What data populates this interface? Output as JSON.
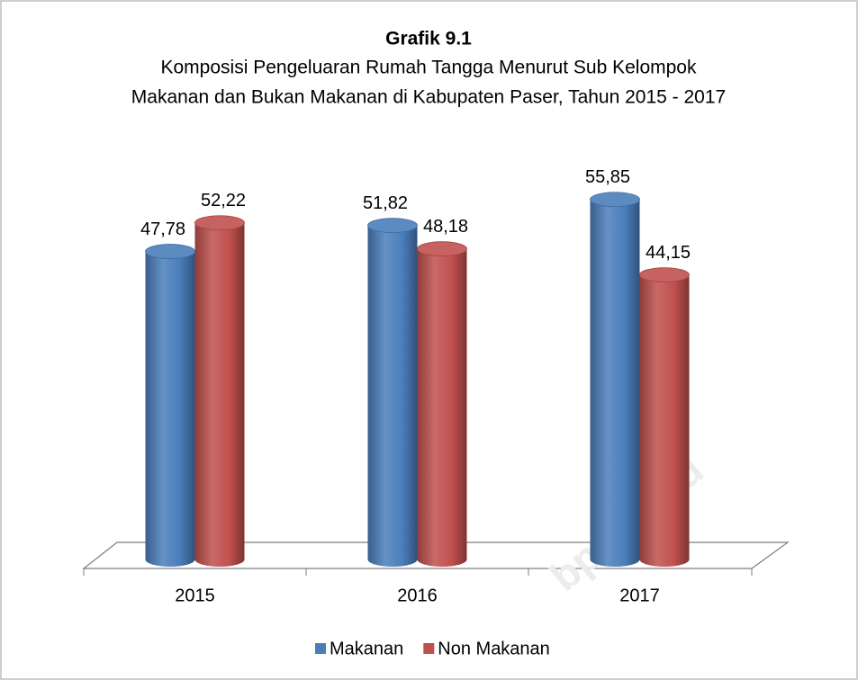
{
  "chart_data": {
    "type": "cylinder-bar",
    "title": "Grafik 9.1",
    "subtitle": [
      "Komposisi Pengeluaran Rumah Tangga Menurut Sub Kelompok",
      "Makanan dan Bukan Makanan di Kabupaten Paser, Tahun 2015 - 2017"
    ],
    "categories": [
      "2015",
      "2016",
      "2017"
    ],
    "series": [
      {
        "name": "Makanan",
        "color": "#4a7ebb",
        "values": [
          47.78,
          51.82,
          55.85
        ],
        "value_labels": [
          "47,78",
          "51,82",
          "55,85"
        ]
      },
      {
        "name": "Non Makanan",
        "color": "#c0504d",
        "values": [
          52.22,
          48.18,
          44.15
        ],
        "value_labels": [
          "52,22",
          "48,18",
          "44,15"
        ]
      }
    ],
    "ylim": [
      0,
      60
    ],
    "legend": "bottom",
    "watermark": "bps.go.id"
  }
}
